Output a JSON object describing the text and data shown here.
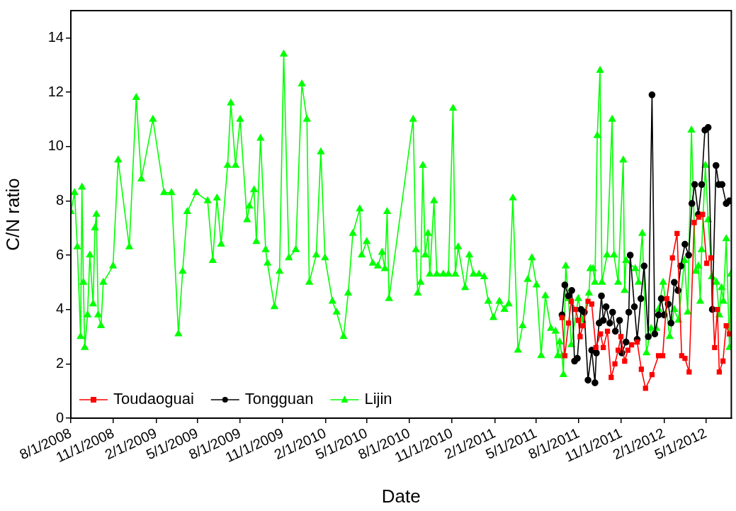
{
  "chart_data": {
    "type": "line",
    "xlabel": "Date",
    "ylabel": "C/N ratio",
    "legend": "bottom left",
    "grid": false,
    "line_style": "solid",
    "xlim": [
      "2008-08-01",
      "2012-06-25"
    ],
    "xticks": [
      {
        "value": "2008-08-01",
        "label": "8/1/2008"
      },
      {
        "value": "2008-11-01",
        "label": "11/1/2008"
      },
      {
        "value": "2009-02-01",
        "label": "2/1/2009"
      },
      {
        "value": "2009-05-01",
        "label": "5/1/2009"
      },
      {
        "value": "2009-08-01",
        "label": "8/1/2009"
      },
      {
        "value": "2009-11-01",
        "label": "11/1/2009"
      },
      {
        "value": "2010-02-01",
        "label": "2/1/2010"
      },
      {
        "value": "2010-05-01",
        "label": "5/1/2010"
      },
      {
        "value": "2010-08-01",
        "label": "8/1/2010"
      },
      {
        "value": "2010-11-01",
        "label": "11/1/2010"
      },
      {
        "value": "2011-02-01",
        "label": "2/1/2011"
      },
      {
        "value": "2011-05-01",
        "label": "5/1/2011"
      },
      {
        "value": "2011-08-01",
        "label": "8/1/2011"
      },
      {
        "value": "2011-11-01",
        "label": "11/1/2011"
      },
      {
        "value": "2012-02-01",
        "label": "2/1/2012"
      },
      {
        "value": "2012-05-01",
        "label": "5/1/2012"
      }
    ],
    "ylim": [
      0,
      15
    ],
    "yticks": [
      0,
      2,
      4,
      6,
      8,
      10,
      12,
      14
    ],
    "series": [
      {
        "name": "Toudaoguai",
        "color": "#ff0000",
        "marker": "square",
        "x": [
          "2011-06-26",
          "2011-07-02",
          "2011-07-10",
          "2011-07-16",
          "2011-07-25",
          "2011-07-31",
          "2011-08-04",
          "2011-08-10",
          "2011-08-21",
          "2011-08-29",
          "2011-09-07",
          "2011-09-17",
          "2011-09-23",
          "2011-10-02",
          "2011-10-10",
          "2011-10-18",
          "2011-10-25",
          "2011-10-31",
          "2011-11-08",
          "2011-11-15",
          "2011-11-23",
          "2011-12-05",
          "2011-12-14",
          "2011-12-23",
          "2012-01-06",
          "2012-01-20",
          "2012-01-29",
          "2012-02-07",
          "2012-02-19",
          "2012-02-29",
          "2012-03-10",
          "2012-03-17",
          "2012-03-26",
          "2012-04-06",
          "2012-04-16",
          "2012-04-24",
          "2012-05-03",
          "2012-05-12",
          "2012-05-20",
          "2012-05-26",
          "2012-05-30",
          "2012-06-07",
          "2012-06-14",
          "2012-06-21"
        ],
        "values": [
          3.7,
          2.3,
          3.5,
          4.3,
          4.0,
          3.6,
          3.0,
          3.4,
          4.3,
          4.2,
          2.6,
          3.1,
          2.6,
          3.2,
          1.5,
          2.0,
          2.5,
          3.0,
          2.1,
          2.5,
          2.7,
          2.8,
          1.8,
          1.1,
          1.6,
          2.3,
          2.3,
          4.4,
          5.9,
          6.8,
          2.3,
          2.2,
          1.7,
          7.2,
          7.4,
          7.5,
          5.7,
          5.9,
          2.6,
          4.0,
          1.7,
          2.1,
          3.4,
          3.1
        ]
      },
      {
        "name": "Tongguan",
        "color": "#000000",
        "marker": "circle",
        "x": [
          "2011-06-26",
          "2011-07-02",
          "2011-07-10",
          "2011-07-17",
          "2011-07-23",
          "2011-07-29",
          "2011-08-06",
          "2011-08-13",
          "2011-08-21",
          "2011-08-29",
          "2011-09-05",
          "2011-09-08",
          "2011-09-14",
          "2011-09-19",
          "2011-09-23",
          "2011-09-29",
          "2011-10-07",
          "2011-10-13",
          "2011-10-19",
          "2011-10-28",
          "2011-11-02",
          "2011-11-11",
          "2011-11-17",
          "2011-11-20",
          "2011-11-29",
          "2011-12-05",
          "2011-12-13",
          "2011-12-20",
          "2011-12-29",
          "2012-01-06",
          "2012-01-12",
          "2012-01-20",
          "2012-01-26",
          "2012-02-01",
          "2012-02-10",
          "2012-02-16",
          "2012-02-23",
          "2012-03-02",
          "2012-03-08",
          "2012-03-17",
          "2012-03-25",
          "2012-04-01",
          "2012-04-07",
          "2012-04-15",
          "2012-04-22",
          "2012-04-29",
          "2012-05-06",
          "2012-05-15",
          "2012-05-23",
          "2012-05-29",
          "2012-06-05",
          "2012-06-14",
          "2012-06-21"
        ],
        "values": [
          3.8,
          4.9,
          4.5,
          4.7,
          2.1,
          2.2,
          4.0,
          3.9,
          1.4,
          2.5,
          1.3,
          2.4,
          3.5,
          4.5,
          3.6,
          4.1,
          3.5,
          3.9,
          3.2,
          3.6,
          2.4,
          2.8,
          3.9,
          6.0,
          4.1,
          2.9,
          4.4,
          5.6,
          3.0,
          11.9,
          3.1,
          3.8,
          4.4,
          3.8,
          4.2,
          3.5,
          5.0,
          4.7,
          5.6,
          6.4,
          6.0,
          7.9,
          8.6,
          7.5,
          8.6,
          10.6,
          10.7,
          4.0,
          9.3,
          8.6,
          8.6,
          7.9,
          8.0
        ]
      },
      {
        "name": "Lijin",
        "color": "#00ff00",
        "marker": "triangle",
        "x": [
          "2008-08-01",
          "2008-08-09",
          "2008-08-15",
          "2008-08-22",
          "2008-08-25",
          "2008-08-28",
          "2008-08-31",
          "2008-09-06",
          "2008-09-11",
          "2008-09-18",
          "2008-09-22",
          "2008-09-25",
          "2008-09-29",
          "2008-10-05",
          "2008-10-10",
          "2008-10-31",
          "2008-11-11",
          "2008-12-05",
          "2008-12-20",
          "2008-12-31",
          "2009-01-25",
          "2009-02-18",
          "2009-03-06",
          "2009-03-21",
          "2009-03-30",
          "2009-04-09",
          "2009-04-28",
          "2009-05-23",
          "2009-06-03",
          "2009-06-12",
          "2009-06-21",
          "2009-07-05",
          "2009-07-12",
          "2009-07-22",
          "2009-08-01",
          "2009-08-16",
          "2009-08-21",
          "2009-08-31",
          "2009-09-05",
          "2009-09-14",
          "2009-09-25",
          "2009-09-29",
          "2009-10-14",
          "2009-10-25",
          "2009-11-03",
          "2009-11-14",
          "2009-11-29",
          "2009-12-12",
          "2009-12-23",
          "2009-12-28",
          "2010-01-12",
          "2010-01-22",
          "2010-01-31",
          "2010-02-16",
          "2010-02-25",
          "2010-03-12",
          "2010-03-22",
          "2010-04-01",
          "2010-04-16",
          "2010-04-20",
          "2010-05-01",
          "2010-05-14",
          "2010-05-25",
          "2010-06-03",
          "2010-06-09",
          "2010-06-14",
          "2010-06-18",
          "2010-08-09",
          "2010-08-15",
          "2010-08-19",
          "2010-08-25",
          "2010-08-30",
          "2010-09-04",
          "2010-09-10",
          "2010-09-14",
          "2010-09-23",
          "2010-09-29",
          "2010-10-13",
          "2010-10-24",
          "2010-11-03",
          "2010-11-08",
          "2010-11-14",
          "2010-11-29",
          "2010-12-08",
          "2010-12-17",
          "2010-12-29",
          "2011-01-09",
          "2011-01-18",
          "2011-01-29",
          "2011-02-11",
          "2011-02-22",
          "2011-03-03",
          "2011-03-12",
          "2011-03-23",
          "2011-04-02",
          "2011-04-13",
          "2011-04-22",
          "2011-05-02",
          "2011-05-12",
          "2011-05-21",
          "2011-06-02",
          "2011-06-12",
          "2011-06-17",
          "2011-06-21",
          "2011-06-26",
          "2011-06-29",
          "2011-07-04",
          "2011-07-10",
          "2011-07-16",
          "2011-07-31",
          "2011-08-09",
          "2011-08-23",
          "2011-08-26",
          "2011-09-01",
          "2011-09-05",
          "2011-09-10",
          "2011-09-16",
          "2011-09-20",
          "2011-10-01",
          "2011-10-12",
          "2011-10-16",
          "2011-10-25",
          "2011-11-05",
          "2011-11-08",
          "2011-11-11",
          "2011-12-01",
          "2011-12-08",
          "2011-12-16",
          "2011-12-25",
          "2012-01-04",
          "2012-01-15",
          "2012-01-20",
          "2012-01-30",
          "2012-02-13",
          "2012-02-23",
          "2012-03-03",
          "2012-03-16",
          "2012-03-23",
          "2012-03-31",
          "2012-04-09",
          "2012-04-15",
          "2012-04-19",
          "2012-04-22",
          "2012-04-30",
          "2012-05-06",
          "2012-05-14",
          "2012-05-24",
          "2012-05-30",
          "2012-06-04",
          "2012-06-08",
          "2012-06-14",
          "2012-06-21",
          "2012-06-24"
        ],
        "values": [
          7.6,
          8.3,
          6.3,
          3.0,
          8.5,
          5.0,
          2.6,
          3.8,
          6.0,
          4.2,
          7.0,
          7.5,
          3.8,
          3.4,
          5.0,
          5.6,
          9.5,
          6.3,
          11.8,
          8.8,
          11.0,
          8.3,
          8.3,
          3.1,
          5.4,
          7.6,
          8.3,
          8.0,
          5.8,
          8.1,
          6.4,
          9.3,
          11.6,
          9.3,
          11.0,
          7.3,
          7.8,
          8.4,
          6.5,
          10.3,
          6.2,
          5.7,
          4.1,
          5.4,
          13.4,
          5.9,
          6.2,
          12.3,
          11.0,
          5.0,
          6.0,
          9.8,
          5.9,
          4.3,
          3.9,
          3.0,
          4.6,
          6.8,
          7.7,
          6.0,
          6.5,
          5.7,
          5.6,
          6.1,
          5.5,
          7.6,
          4.4,
          11.0,
          6.2,
          4.6,
          5.0,
          9.3,
          6.0,
          6.8,
          5.3,
          8.0,
          5.3,
          5.3,
          5.3,
          11.4,
          5.3,
          6.3,
          4.8,
          6.0,
          5.3,
          5.3,
          5.2,
          4.3,
          3.7,
          4.3,
          4.0,
          4.2,
          8.1,
          2.5,
          3.4,
          5.1,
          5.9,
          4.9,
          2.3,
          4.5,
          3.3,
          3.2,
          2.3,
          2.8,
          2.3,
          1.6,
          5.6,
          4.4,
          2.7,
          4.4,
          3.6,
          4.6,
          5.5,
          5.5,
          5.0,
          10.4,
          12.8,
          5.0,
          6.0,
          11.0,
          6.0,
          5.0,
          9.5,
          4.7,
          5.8,
          5.5,
          5.0,
          6.8,
          2.4,
          3.3,
          3.3,
          4.0,
          5.0,
          3.0,
          4.0,
          3.6,
          5.8,
          3.9,
          10.6,
          5.4,
          5.6,
          4.3,
          6.2,
          9.3,
          7.3,
          5.2,
          5.0,
          3.8,
          4.8,
          4.3,
          6.6,
          2.6,
          5.3
        ]
      }
    ]
  }
}
